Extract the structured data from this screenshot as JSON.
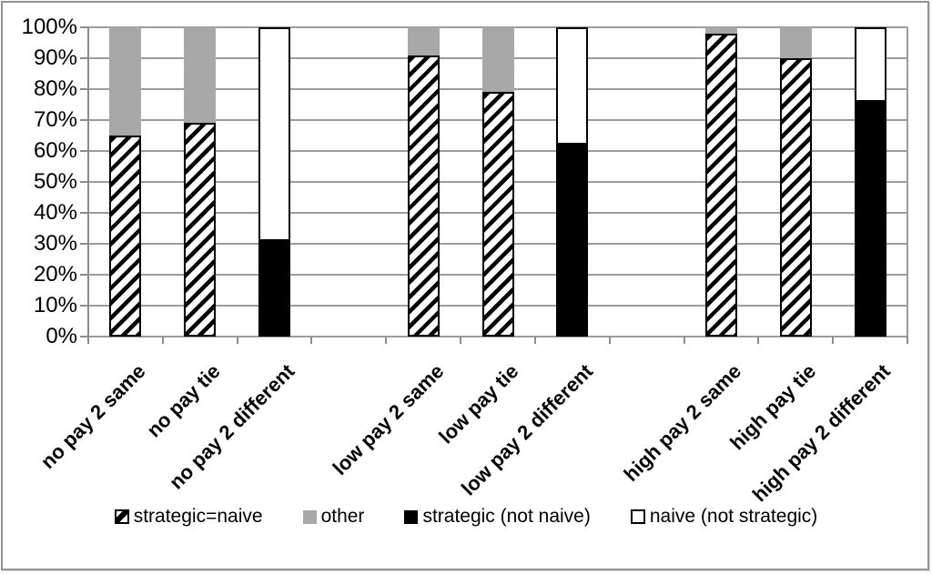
{
  "figure": {
    "border_color": "#949494",
    "background": "#ffffff"
  },
  "colors": {
    "gray_fill": "#a8a8a8",
    "gridline": "#9c9c9c",
    "axis": "#8d8d8d",
    "hatch_foreground": "#000000",
    "text": "#000000"
  },
  "chart_data": {
    "type": "bar",
    "stacked": true,
    "percent_scale": true,
    "title": "",
    "xlabel": "",
    "ylabel": "",
    "grid": true,
    "categories": [
      "no pay 2 same",
      "no pay tie",
      "no pay 2 different",
      "low pay 2 same",
      "low pay tie",
      "low pay 2 different",
      "high pay 2 same",
      "high pay tie",
      "high pay 2 different"
    ],
    "category_slots": [
      0,
      1,
      2,
      4,
      5,
      6,
      8,
      9,
      10
    ],
    "total_slots": 11,
    "series": [
      {
        "name": "strategic=naive",
        "style": "hatch",
        "values": [
          65,
          69,
          0,
          91,
          79,
          0,
          98,
          90,
          0
        ]
      },
      {
        "name": "other",
        "style": "gray",
        "values": [
          35,
          31,
          0,
          9,
          21,
          0,
          2,
          10,
          0
        ]
      },
      {
        "name": "strategic (not naive)",
        "style": "black",
        "values": [
          0,
          0,
          31,
          0,
          0,
          62,
          0,
          0,
          76
        ]
      },
      {
        "name": "naive (not strategic)",
        "style": "white",
        "values": [
          0,
          0,
          69,
          0,
          0,
          38,
          0,
          0,
          24
        ]
      }
    ],
    "y_axis": {
      "min": 0,
      "max": 100,
      "step": 10,
      "tick_labels": [
        "0%",
        "10%",
        "20%",
        "30%",
        "40%",
        "50%",
        "60%",
        "70%",
        "80%",
        "90%",
        "100%"
      ]
    },
    "legend": {
      "position": "bottom",
      "entries": [
        {
          "label": "strategic=naive",
          "style": "hatch"
        },
        {
          "label": "other",
          "style": "gray"
        },
        {
          "label": "strategic (not naive)",
          "style": "black"
        },
        {
          "label": "naive (not strategic)",
          "style": "white"
        }
      ]
    }
  }
}
